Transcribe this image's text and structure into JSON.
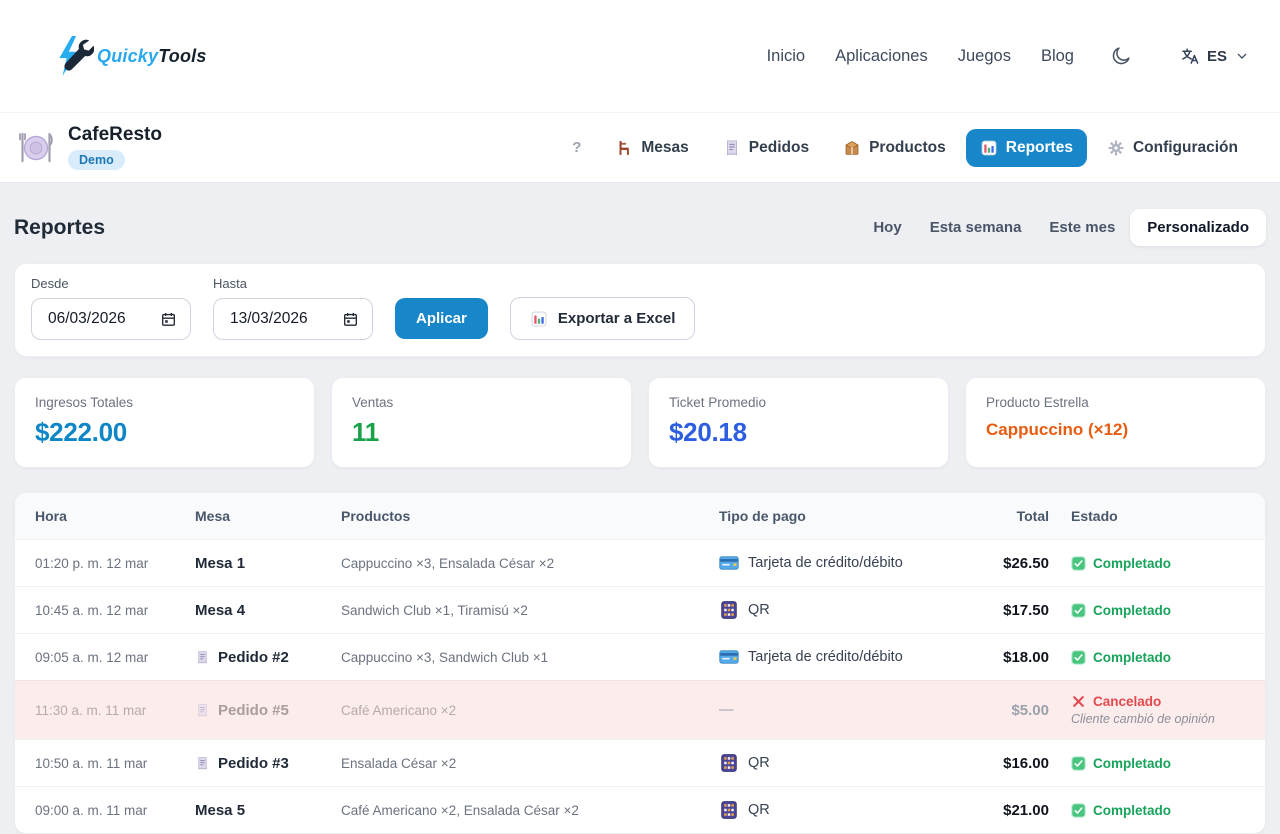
{
  "colors": {
    "accent": "#1787c9",
    "positive": "#18a35b",
    "negative": "#e5484d"
  },
  "topnav": {
    "brand": {
      "primary": "Quicky",
      "secondary": "Tools",
      "icon": "bolt-wrench-icon"
    },
    "links": [
      "Inicio",
      "Aplicaciones",
      "Juegos",
      "Blog"
    ],
    "theme_toggle_icon": "moon-icon",
    "language": {
      "icon": "translate-icon",
      "code": "ES",
      "chevron": "chevron-down-icon"
    }
  },
  "appbar": {
    "icon": "restaurant-icon",
    "title": "CafeResto",
    "badge": "Demo",
    "help_label": "?",
    "tabs": [
      {
        "label": "Mesas",
        "icon": "chair-icon",
        "active": false
      },
      {
        "label": "Pedidos",
        "icon": "receipt-icon",
        "active": false
      },
      {
        "label": "Productos",
        "icon": "package-icon",
        "active": false
      },
      {
        "label": "Reportes",
        "icon": "chart-icon",
        "active": true
      },
      {
        "label": "Configuración",
        "icon": "gear-icon",
        "active": false
      }
    ]
  },
  "page": {
    "title": "Reportes",
    "range_filters": [
      {
        "label": "Hoy",
        "active": false
      },
      {
        "label": "Esta semana",
        "active": false
      },
      {
        "label": "Este mes",
        "active": false
      },
      {
        "label": "Personalizado",
        "active": true
      }
    ]
  },
  "filters": {
    "from": {
      "label": "Desde",
      "value": "06/03/2026",
      "icon": "calendar-icon"
    },
    "to": {
      "label": "Hasta",
      "value": "13/03/2026",
      "icon": "calendar-icon"
    },
    "apply_label": "Aplicar",
    "export": {
      "label": "Exportar a Excel",
      "icon": "chart-icon"
    }
  },
  "stats": [
    {
      "label": "Ingresos Totales",
      "value": "$222.00",
      "color": "#0c86c6",
      "size": "lg"
    },
    {
      "label": "Ventas",
      "value": "11",
      "color": "#18a34a",
      "size": "lg"
    },
    {
      "label": "Ticket Promedio",
      "value": "$20.18",
      "color": "#2d5de0",
      "size": "lg"
    },
    {
      "label": "Producto Estrella",
      "value": "Cappuccino (×12)",
      "color": "#e65c10",
      "size": "sm"
    }
  ],
  "table": {
    "columns": [
      "Hora",
      "Mesa",
      "Productos",
      "Tipo de pago",
      "Total",
      "Estado"
    ],
    "rows": [
      {
        "time": "01:20 p. m. 12 mar",
        "target": "Mesa 1",
        "target_icon": null,
        "products": "Cappuccino ×3, Ensalada César ×2",
        "payment": "Tarjeta de crédito/débito",
        "payment_icon": "credit-card-icon",
        "total": "$26.50",
        "status": "Completado",
        "status_type": "completed",
        "status_icon": "check-badge-icon",
        "note": null
      },
      {
        "time": "10:45 a. m. 12 mar",
        "target": "Mesa 4",
        "target_icon": null,
        "products": "Sandwich Club ×1, Tiramisú ×2",
        "payment": "QR",
        "payment_icon": "qr-icon",
        "total": "$17.50",
        "status": "Completado",
        "status_type": "completed",
        "status_icon": "check-badge-icon",
        "note": null
      },
      {
        "time": "09:05 a. m. 12 mar",
        "target": "Pedido #2",
        "target_icon": "receipt-icon",
        "products": "Cappuccino ×3, Sandwich Club ×1",
        "payment": "Tarjeta de crédito/débito",
        "payment_icon": "credit-card-icon",
        "total": "$18.00",
        "status": "Completado",
        "status_type": "completed",
        "status_icon": "check-badge-icon",
        "note": null
      },
      {
        "time": "11:30 a. m. 11 mar",
        "target": "Pedido #5",
        "target_icon": "receipt-icon",
        "products": "Café Americano ×2",
        "payment": "—",
        "payment_icon": null,
        "total": "$5.00",
        "status": "Cancelado",
        "status_type": "cancelled",
        "status_icon": "x-icon",
        "note": "Cliente cambió de opinión"
      },
      {
        "time": "10:50 a. m. 11 mar",
        "target": "Pedido #3",
        "target_icon": "receipt-icon",
        "products": "Ensalada César ×2",
        "payment": "QR",
        "payment_icon": "qr-icon",
        "total": "$16.00",
        "status": "Completado",
        "status_type": "completed",
        "status_icon": "check-badge-icon",
        "note": null
      },
      {
        "time": "09:00 a. m. 11 mar",
        "target": "Mesa 5",
        "target_icon": null,
        "products": "Café Americano ×2, Ensalada César ×2",
        "payment": "QR",
        "payment_icon": "qr-icon",
        "total": "$21.00",
        "status": "Completado",
        "status_type": "completed",
        "status_icon": "check-badge-icon",
        "note": null
      }
    ]
  }
}
